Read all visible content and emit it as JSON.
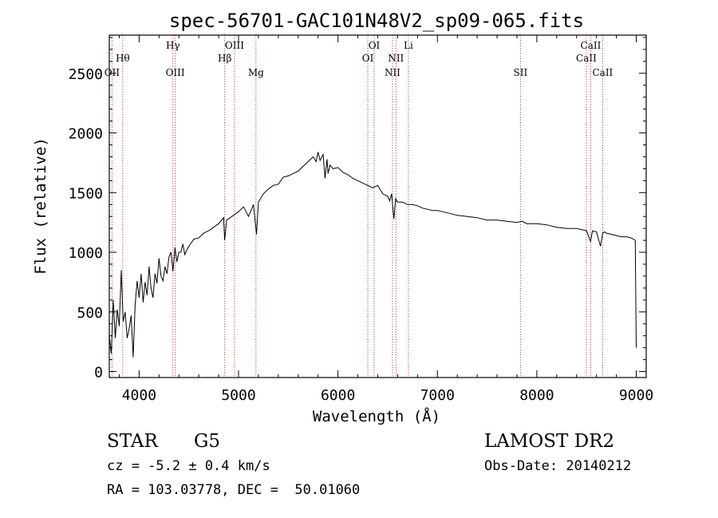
{
  "chart_data": {
    "type": "line",
    "title": "spec-56701-GAC101N48V2_sp09-065.fits",
    "xlabel": "Wavelength (Å)",
    "ylabel": "Flux (relative)",
    "xlim": [
      3700,
      9100
    ],
    "ylim": [
      -50,
      2820
    ],
    "x_ticks": [
      4000,
      5000,
      6000,
      7000,
      8000,
      9000
    ],
    "y_ticks": [
      0,
      500,
      1000,
      1500,
      2000,
      2500
    ],
    "grid": false,
    "series": [
      {
        "x": [
          3700,
          3720,
          3740,
          3760,
          3780,
          3800,
          3820,
          3840,
          3860,
          3880,
          3900,
          3920,
          3940,
          3960,
          3980,
          4000,
          4020,
          4040,
          4060,
          4080,
          4100,
          4120,
          4140,
          4160,
          4180,
          4200,
          4220,
          4240,
          4260,
          4280,
          4300,
          4320,
          4340,
          4360,
          4380,
          4400,
          4420,
          4440,
          4460,
          4480,
          4500,
          4550,
          4600,
          4650,
          4700,
          4750,
          4800,
          4850,
          4860,
          4880,
          4900,
          4950,
          5000,
          5050,
          5100,
          5150,
          5180,
          5200,
          5250,
          5300,
          5350,
          5400,
          5450,
          5500,
          5550,
          5600,
          5650,
          5700,
          5750,
          5780,
          5800,
          5820,
          5850,
          5870,
          5890,
          5900,
          5920,
          5950,
          6000,
          6050,
          6100,
          6150,
          6200,
          6250,
          6300,
          6350,
          6400,
          6450,
          6500,
          6520,
          6540,
          6562,
          6580,
          6600,
          6650,
          6700,
          6750,
          6800,
          6850,
          6900,
          6950,
          7000,
          7100,
          7200,
          7300,
          7400,
          7500,
          7600,
          7700,
          7800,
          7850,
          7900,
          8000,
          8100,
          8200,
          8300,
          8400,
          8500,
          8540,
          8560,
          8600,
          8640,
          8662,
          8680,
          8700,
          8750,
          8800,
          8850,
          8900,
          8950,
          8990,
          9000
        ],
        "values": [
          300,
          150,
          600,
          280,
          520,
          380,
          850,
          420,
          500,
          280,
          360,
          470,
          120,
          560,
          760,
          620,
          820,
          580,
          750,
          640,
          880,
          700,
          620,
          820,
          740,
          950,
          800,
          760,
          880,
          820,
          960,
          1000,
          840,
          1040,
          920,
          1000,
          1000,
          1070,
          980,
          1020,
          1050,
          1110,
          1120,
          1160,
          1180,
          1210,
          1240,
          1290,
          1100,
          1270,
          1280,
          1310,
          1340,
          1380,
          1300,
          1400,
          1150,
          1420,
          1490,
          1530,
          1560,
          1570,
          1630,
          1640,
          1660,
          1680,
          1720,
          1760,
          1800,
          1760,
          1840,
          1770,
          1820,
          1620,
          1780,
          1660,
          1730,
          1700,
          1710,
          1670,
          1650,
          1620,
          1600,
          1580,
          1560,
          1540,
          1560,
          1490,
          1470,
          1430,
          1490,
          1280,
          1450,
          1420,
          1420,
          1400,
          1400,
          1390,
          1370,
          1360,
          1350,
          1350,
          1330,
          1310,
          1300,
          1290,
          1270,
          1270,
          1260,
          1250,
          1260,
          1240,
          1240,
          1230,
          1210,
          1200,
          1200,
          1180,
          1090,
          1180,
          1170,
          1050,
          1160,
          1170,
          1160,
          1150,
          1140,
          1130,
          1130,
          1120,
          1100,
          200
        ]
      }
    ],
    "lines": [
      {
        "x": 3727,
        "label": "OII",
        "row": 3
      },
      {
        "x": 3835,
        "label": "Hθ",
        "row": 2
      },
      {
        "x": 4340,
        "label": "Hγ",
        "row": 1
      },
      {
        "x": 4363,
        "label": "OIII",
        "row": 3
      },
      {
        "x": 4861,
        "label": "Hβ",
        "row": 2
      },
      {
        "x": 4959,
        "label": "OIII",
        "row": 1
      },
      {
        "x": 5175,
        "label": "Mg",
        "row": 3
      },
      {
        "x": 6300,
        "label": "OI",
        "row": 2
      },
      {
        "x": 6364,
        "label": "OI",
        "row": 1
      },
      {
        "x": 6548,
        "label": "NII",
        "row": 3
      },
      {
        "x": 6583,
        "label": "NII",
        "row": 2
      },
      {
        "x": 6708,
        "label": "Li",
        "row": 1
      },
      {
        "x": 7835,
        "label": "SII",
        "row": 3
      },
      {
        "x": 8498,
        "label": "CaII",
        "row": 2
      },
      {
        "x": 8542,
        "label": "CaII",
        "row": 1
      },
      {
        "x": 8662,
        "label": "CaII",
        "row": 3
      }
    ]
  },
  "info": {
    "class": "STAR",
    "subclass": "G5",
    "survey": "LAMOST DR2",
    "cz": "cz = -5.2 ± 0.4 km/s",
    "obs_date": "Obs-Date: 20140212",
    "coords": "RA = 103.03778, DEC =  50.01060"
  }
}
